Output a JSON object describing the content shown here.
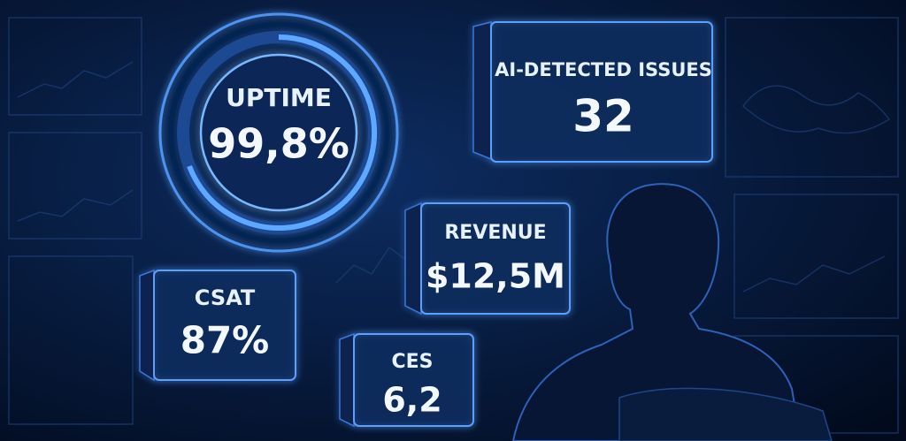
{
  "tiles": [
    {
      "label": "UPTIME",
      "value": "99,8%"
    },
    {
      "label": "AI-DETECTED ISSUES",
      "value": "32"
    },
    {
      "label": "REVENUE",
      "value": "$12,5M"
    },
    {
      "label": "CSAT",
      "value": "87%"
    },
    {
      "label": "CES",
      "value": "6,2"
    }
  ]
}
